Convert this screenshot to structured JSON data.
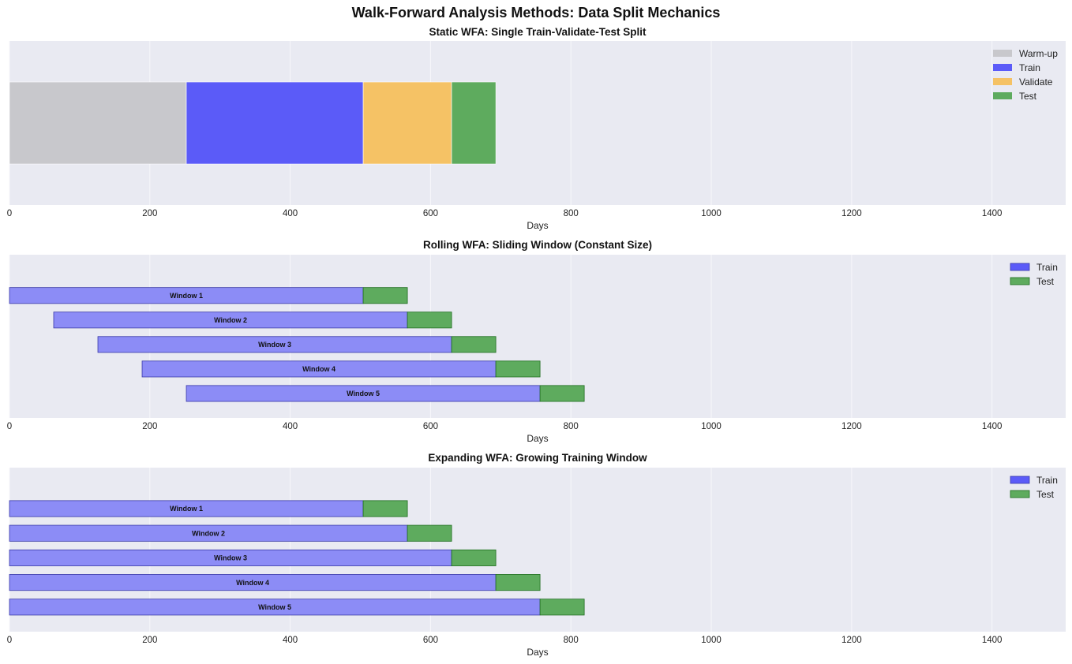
{
  "figure_title": "Walk-Forward Analysis Methods: Data Split Mechanics",
  "colors": {
    "warmup": "#c8c8cc",
    "train_static": "#5b5bf8",
    "validate": "#f5c265",
    "test": "#5eab5e",
    "train_window": "#8c8cf6",
    "train_edge": "#3a3aa8",
    "test_edge": "#1f6e1f",
    "panel_bg": "#e9eaf2",
    "grid": "#f7f7fb"
  },
  "chart_data": [
    {
      "type": "bar",
      "orientation": "horizontal-stacked",
      "title": "Static WFA: Single Train-Validate-Test Split",
      "xlabel": "Days",
      "ylabel": "",
      "xlim": [
        0,
        1505
      ],
      "xticks": [
        0,
        200,
        400,
        600,
        800,
        1000,
        1200,
        1400
      ],
      "grid": true,
      "legend_position": "top-right",
      "legend": [
        {
          "label": "Warm-up",
          "color": "#c8c8cc"
        },
        {
          "label": "Train",
          "color": "#5b5bf8"
        },
        {
          "label": "Validate",
          "color": "#f5c265"
        },
        {
          "label": "Test",
          "color": "#5eab5e"
        }
      ],
      "segments": [
        {
          "name": "Warm-up",
          "start": 0,
          "end": 252
        },
        {
          "name": "Train",
          "start": 252,
          "end": 504
        },
        {
          "name": "Validate",
          "start": 504,
          "end": 630
        },
        {
          "name": "Test",
          "start": 630,
          "end": 693
        }
      ]
    },
    {
      "type": "bar",
      "orientation": "horizontal-gantt",
      "title": "Rolling WFA: Sliding Window (Constant Size)",
      "xlabel": "Days",
      "ylabel": "",
      "xlim": [
        0,
        1505
      ],
      "xticks": [
        0,
        200,
        400,
        600,
        800,
        1000,
        1200,
        1400
      ],
      "grid": true,
      "legend_position": "top-right",
      "legend": [
        {
          "label": "Train",
          "color": "#5b5bf8"
        },
        {
          "label": "Test",
          "color": "#5eab5e"
        }
      ],
      "windows": [
        {
          "label": "Window 1",
          "train_start": 0,
          "train_end": 504,
          "test_end": 567
        },
        {
          "label": "Window 2",
          "train_start": 63,
          "train_end": 567,
          "test_end": 630
        },
        {
          "label": "Window 3",
          "train_start": 126,
          "train_end": 630,
          "test_end": 693
        },
        {
          "label": "Window 4",
          "train_start": 189,
          "train_end": 693,
          "test_end": 756
        },
        {
          "label": "Window 5",
          "train_start": 252,
          "train_end": 756,
          "test_end": 819
        }
      ]
    },
    {
      "type": "bar",
      "orientation": "horizontal-gantt",
      "title": "Expanding WFA: Growing Training Window",
      "xlabel": "Days",
      "ylabel": "",
      "xlim": [
        0,
        1505
      ],
      "xticks": [
        0,
        200,
        400,
        600,
        800,
        1000,
        1200,
        1400
      ],
      "grid": true,
      "legend_position": "top-right",
      "legend": [
        {
          "label": "Train",
          "color": "#5b5bf8"
        },
        {
          "label": "Test",
          "color": "#5eab5e"
        }
      ],
      "windows": [
        {
          "label": "Window 1",
          "train_start": 0,
          "train_end": 504,
          "test_end": 567
        },
        {
          "label": "Window 2",
          "train_start": 0,
          "train_end": 567,
          "test_end": 630
        },
        {
          "label": "Window 3",
          "train_start": 0,
          "train_end": 630,
          "test_end": 693
        },
        {
          "label": "Window 4",
          "train_start": 0,
          "train_end": 693,
          "test_end": 756
        },
        {
          "label": "Window 5",
          "train_start": 0,
          "train_end": 756,
          "test_end": 819
        }
      ]
    }
  ]
}
